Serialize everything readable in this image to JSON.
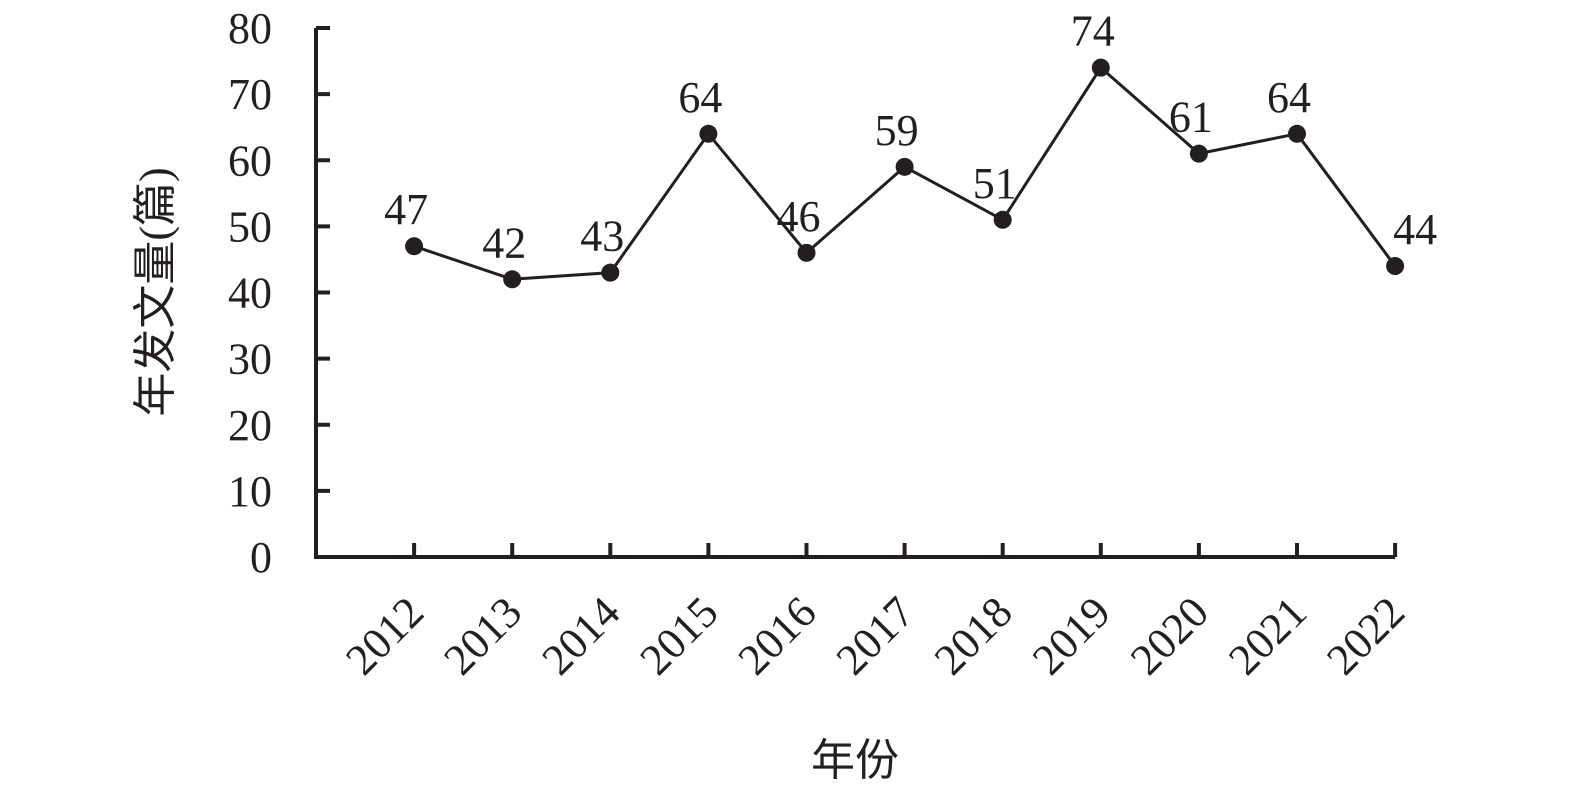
{
  "chart_data": {
    "type": "line",
    "x_label": "年份",
    "y_label": "年发文量(篇)",
    "categories": [
      "2012",
      "2013",
      "2014",
      "2015",
      "2016",
      "2017",
      "2018",
      "2019",
      "2020",
      "2021",
      "2022"
    ],
    "values": [
      47,
      42,
      43,
      64,
      46,
      59,
      51,
      74,
      61,
      64,
      44
    ],
    "color": "#231f20",
    "ylim": [
      0,
      80
    ],
    "yticks": [
      0,
      10,
      20,
      30,
      40,
      50,
      60,
      70,
      80
    ],
    "grid": false
  }
}
